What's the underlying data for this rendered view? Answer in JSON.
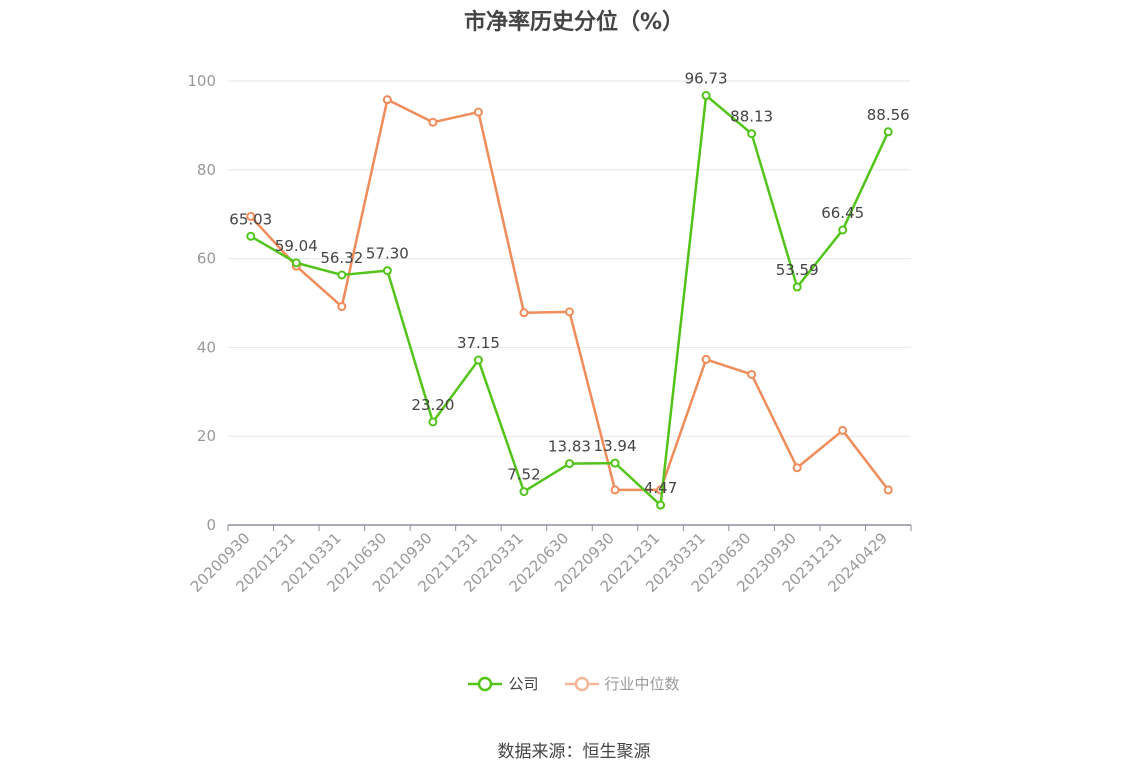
{
  "source_text": "数据来源：恒生聚源",
  "colors": {
    "company": "#52c41a",
    "industry": "#f08c5a",
    "axis": "#8e8e9e",
    "grid": "#e6e6ea"
  },
  "chart_data": {
    "type": "line",
    "title": "市净率历史分位（%）",
    "xlabel": "",
    "ylabel": "",
    "categories": [
      "20200930",
      "20201231",
      "20210331",
      "20210630",
      "20210930",
      "20211231",
      "20220331",
      "20220630",
      "20220930",
      "20221231",
      "20230331",
      "20230630",
      "20230930",
      "20231231",
      "20240429"
    ],
    "ylim": [
      0,
      100
    ],
    "yticks": [
      0,
      20,
      40,
      60,
      80,
      100
    ],
    "grid": true,
    "legend_position": "bottom",
    "series": [
      {
        "name": "公司",
        "color": "#52c41a",
        "show_labels": true,
        "values": [
          65.03,
          59.04,
          56.32,
          57.3,
          23.2,
          37.15,
          7.52,
          13.83,
          13.94,
          4.47,
          96.73,
          88.13,
          53.59,
          66.45,
          88.56
        ]
      },
      {
        "name": "行业中位数",
        "color": "#f08c5a",
        "show_labels": false,
        "values": [
          69.5,
          58.3,
          49.2,
          95.8,
          90.7,
          93.0,
          47.8,
          48.0,
          7.9,
          7.9,
          37.3,
          33.9,
          12.9,
          21.3,
          7.9
        ]
      }
    ]
  }
}
